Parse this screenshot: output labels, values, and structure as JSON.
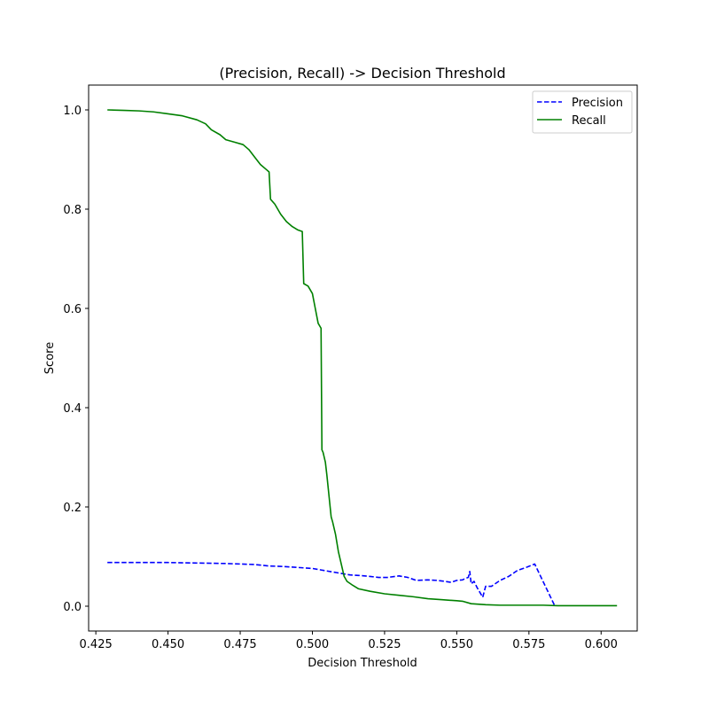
{
  "chart_data": {
    "type": "line",
    "title": "(Precision, Recall) -> Decision Threshold",
    "xlabel": "Decision Threshold",
    "ylabel": "Score",
    "xlim": [
      0.4225,
      0.6125
    ],
    "ylim": [
      -0.05,
      1.05
    ],
    "xticks": [
      0.425,
      0.45,
      0.475,
      0.5,
      0.525,
      0.55,
      0.575,
      0.6
    ],
    "xtick_labels": [
      "0.425",
      "0.450",
      "0.475",
      "0.500",
      "0.525",
      "0.550",
      "0.575",
      "0.600"
    ],
    "yticks": [
      0.0,
      0.2,
      0.4,
      0.6,
      0.8,
      1.0
    ],
    "ytick_labels": [
      "0.0",
      "0.2",
      "0.4",
      "0.6",
      "0.8",
      "1.0"
    ],
    "grid": false,
    "legend_position": "top-right",
    "series": [
      {
        "name": "Precision",
        "color": "#0000ff",
        "style": "dashed",
        "x": [
          0.429,
          0.44,
          0.45,
          0.46,
          0.47,
          0.48,
          0.485,
          0.49,
          0.495,
          0.5,
          0.503,
          0.505,
          0.507,
          0.51,
          0.513,
          0.516,
          0.52,
          0.523,
          0.526,
          0.53,
          0.533,
          0.536,
          0.54,
          0.543,
          0.546,
          0.548,
          0.55,
          0.552,
          0.553,
          0.554,
          0.5545,
          0.555,
          0.556,
          0.557,
          0.558,
          0.559,
          0.56,
          0.562,
          0.565,
          0.568,
          0.571,
          0.574,
          0.577,
          0.584
        ],
        "y": [
          0.088,
          0.088,
          0.088,
          0.087,
          0.086,
          0.084,
          0.081,
          0.08,
          0.078,
          0.076,
          0.073,
          0.071,
          0.069,
          0.066,
          0.063,
          0.062,
          0.06,
          0.058,
          0.058,
          0.061,
          0.058,
          0.052,
          0.053,
          0.052,
          0.05,
          0.048,
          0.052,
          0.053,
          0.056,
          0.058,
          0.07,
          0.045,
          0.05,
          0.038,
          0.028,
          0.018,
          0.04,
          0.04,
          0.052,
          0.06,
          0.072,
          0.078,
          0.085,
          0.0
        ]
      },
      {
        "name": "Recall",
        "color": "#008000",
        "style": "solid",
        "x": [
          0.429,
          0.435,
          0.44,
          0.445,
          0.45,
          0.455,
          0.46,
          0.463,
          0.465,
          0.468,
          0.47,
          0.473,
          0.476,
          0.478,
          0.48,
          0.482,
          0.484,
          0.485,
          0.4855,
          0.487,
          0.489,
          0.491,
          0.493,
          0.495,
          0.4965,
          0.497,
          0.4985,
          0.5,
          0.501,
          0.502,
          0.503,
          0.5033,
          0.5037,
          0.5045,
          0.505,
          0.5065,
          0.507,
          0.508,
          0.509,
          0.51,
          0.511,
          0.512,
          0.514,
          0.516,
          0.52,
          0.525,
          0.53,
          0.535,
          0.54,
          0.545,
          0.55,
          0.552,
          0.555,
          0.56,
          0.565,
          0.57,
          0.575,
          0.58,
          0.585,
          0.59,
          0.595,
          0.6,
          0.6055
        ],
        "y": [
          1.0,
          0.999,
          0.998,
          0.996,
          0.992,
          0.988,
          0.98,
          0.972,
          0.96,
          0.95,
          0.94,
          0.935,
          0.93,
          0.92,
          0.905,
          0.89,
          0.88,
          0.875,
          0.82,
          0.81,
          0.79,
          0.775,
          0.765,
          0.758,
          0.755,
          0.65,
          0.645,
          0.63,
          0.6,
          0.57,
          0.56,
          0.315,
          0.31,
          0.29,
          0.265,
          0.18,
          0.17,
          0.145,
          0.11,
          0.085,
          0.06,
          0.05,
          0.042,
          0.035,
          0.03,
          0.025,
          0.022,
          0.019,
          0.015,
          0.013,
          0.011,
          0.01,
          0.005,
          0.003,
          0.002,
          0.002,
          0.002,
          0.002,
          0.001,
          0.001,
          0.001,
          0.001,
          0.001
        ]
      }
    ]
  }
}
